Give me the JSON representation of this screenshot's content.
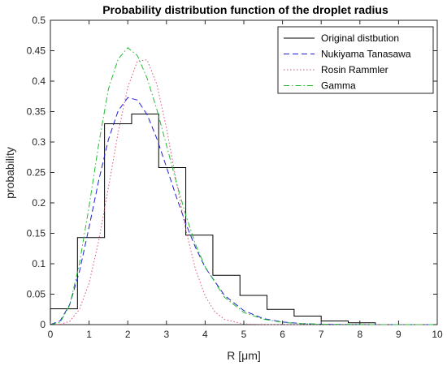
{
  "chart_data": {
    "type": "line",
    "title": "Probability distribution function of the droplet radius",
    "xlabel": "R [μm]",
    "ylabel": "probability",
    "xlim": [
      0,
      10
    ],
    "ylim": [
      0,
      0.5
    ],
    "xticks": [
      "0",
      "1",
      "2",
      "3",
      "4",
      "5",
      "6",
      "7",
      "8",
      "9",
      "10"
    ],
    "yticks": [
      "0",
      "0.05",
      "0.1",
      "0.15",
      "0.2",
      "0.25",
      "0.3",
      "0.35",
      "0.4",
      "0.45",
      "0.5"
    ],
    "grid": false,
    "legend_position": "top-right",
    "series": [
      {
        "name": "Original distbution",
        "style": "step",
        "color": "#000000",
        "bin_edges": [
          0,
          0.7,
          1.4,
          2.1,
          2.8,
          3.5,
          4.2,
          4.9,
          5.6,
          6.3,
          7.0,
          7.7,
          8.4
        ],
        "values": [
          0.026,
          0.143,
          0.33,
          0.346,
          0.258,
          0.147,
          0.081,
          0.048,
          0.025,
          0.014,
          0.006,
          0.003
        ]
      },
      {
        "name": "Nukiyama Tanasawa",
        "style": "dashed",
        "color": "#1f1fd6",
        "x": [
          0,
          0.25,
          0.5,
          0.75,
          1.0,
          1.25,
          1.5,
          1.75,
          2.0,
          2.25,
          2.5,
          2.75,
          3.0,
          3.25,
          3.5,
          3.75,
          4.0,
          4.5,
          5.0,
          5.5,
          6.0,
          6.5,
          7.0,
          7.5,
          8.0,
          9.0,
          10.0
        ],
        "y": [
          0,
          0.006,
          0.033,
          0.087,
          0.16,
          0.237,
          0.304,
          0.351,
          0.373,
          0.369,
          0.345,
          0.306,
          0.259,
          0.211,
          0.166,
          0.127,
          0.094,
          0.048,
          0.023,
          0.01,
          0.0043,
          0.0017,
          0.0007,
          0.0003,
          0.0001,
          0,
          0
        ]
      },
      {
        "name": "Rosin Rammler",
        "style": "dotted",
        "color": "#e0507a",
        "x": [
          0,
          0.25,
          0.5,
          0.75,
          1.0,
          1.25,
          1.5,
          1.75,
          2.0,
          2.25,
          2.5,
          2.75,
          3.0,
          3.25,
          3.5,
          3.75,
          4.0,
          4.25,
          4.5,
          5.0,
          5.5,
          6.0,
          7.0,
          8.0,
          10.0
        ],
        "y": [
          0,
          0.0004,
          0.0054,
          0.025,
          0.068,
          0.138,
          0.225,
          0.315,
          0.39,
          0.433,
          0.435,
          0.395,
          0.323,
          0.237,
          0.156,
          0.091,
          0.047,
          0.021,
          0.0086,
          0.001,
          0.0001,
          0,
          0,
          0,
          0
        ]
      },
      {
        "name": "Gamma",
        "style": "dashdot",
        "color": "#22bb33",
        "x": [
          0,
          0.25,
          0.5,
          0.75,
          1.0,
          1.25,
          1.5,
          1.75,
          2.0,
          2.25,
          2.5,
          2.75,
          3.0,
          3.25,
          3.5,
          3.75,
          4.0,
          4.5,
          5.0,
          5.5,
          6.0,
          6.5,
          7.0,
          8.0,
          9.0,
          10.0
        ],
        "y": [
          0,
          0.0035,
          0.032,
          0.1,
          0.194,
          0.297,
          0.387,
          0.436,
          0.455,
          0.442,
          0.405,
          0.354,
          0.295,
          0.235,
          0.18,
          0.132,
          0.095,
          0.045,
          0.02,
          0.009,
          0.0037,
          0.0015,
          0.0006,
          0.0001,
          0,
          0
        ]
      }
    ]
  }
}
